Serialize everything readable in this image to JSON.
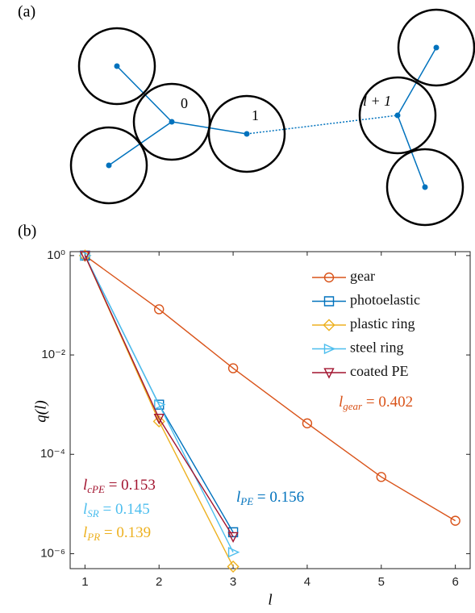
{
  "panel_a": {
    "label": "(a)",
    "nodes": [
      {
        "label": "0"
      },
      {
        "label": "1"
      },
      {
        "label": "l + 1"
      }
    ]
  },
  "chart_data": {
    "type": "line",
    "panel_label": "(b)",
    "xlabel": "l",
    "ylabel": "q(l)",
    "log_y": true,
    "legend": "upper right",
    "x": [
      1,
      2,
      3,
      4,
      5,
      6
    ],
    "xlim": [
      0.8,
      6.2
    ],
    "xticks": [
      1,
      2,
      3,
      4,
      5,
      6
    ],
    "ylim": [
      5e-07,
      1.2
    ],
    "yticks": [
      {
        "value": 1,
        "label": "10⁰"
      },
      {
        "value": 0.01,
        "label": "10⁻²"
      },
      {
        "value": 0.0001,
        "label": "10⁻⁴"
      },
      {
        "value": 1e-06,
        "label": "10⁻⁶"
      }
    ],
    "series": [
      {
        "name": "gear",
        "color": "#d95319",
        "marker": "circle",
        "values": [
          1,
          0.083,
          0.0054,
          0.00042,
          3.5e-05,
          4.6e-06
        ]
      },
      {
        "name": "photoelastic",
        "color": "#0072bd",
        "marker": "square",
        "values": [
          1,
          0.001,
          2.7e-06,
          null,
          null,
          null
        ]
      },
      {
        "name": "plastic ring",
        "color": "#edb120",
        "marker": "diamond",
        "values": [
          1,
          0.00046,
          5.5e-07,
          null,
          null,
          null
        ]
      },
      {
        "name": "steel ring",
        "color": "#4dbeee",
        "marker": "triangle-right",
        "values": [
          1,
          0.001,
          1.07e-06,
          null,
          null,
          null
        ]
      },
      {
        "name": "coated PE",
        "color": "#a2142f",
        "marker": "triangle-down",
        "values": [
          1,
          0.00053,
          2.2e-06,
          null,
          null,
          null
        ]
      }
    ],
    "annotations": [
      {
        "text": "l",
        "sub": "gear",
        "rest": " = 0.402",
        "color": "#d95319"
      },
      {
        "text": "l",
        "sub": "PE",
        "rest": " = 0.156",
        "color": "#0072bd"
      },
      {
        "text": "l",
        "sub": "cPE",
        "rest": " = 0.153",
        "color": "#a2142f"
      },
      {
        "text": "l",
        "sub": "SR",
        "rest": " = 0.145",
        "color": "#4dbeee"
      },
      {
        "text": "l",
        "sub": "PR",
        "rest": " = 0.139",
        "color": "#edb120"
      }
    ]
  }
}
